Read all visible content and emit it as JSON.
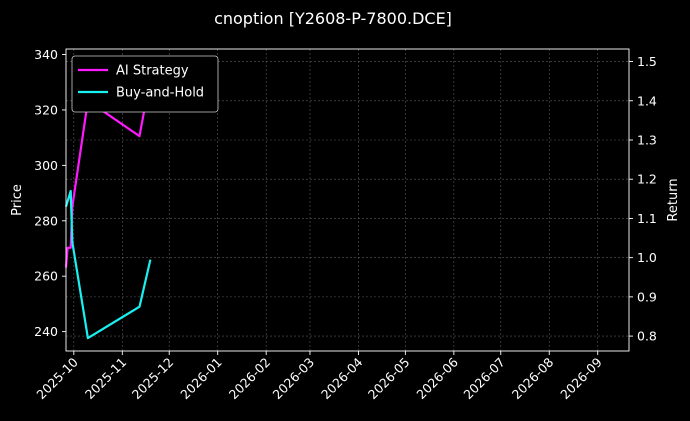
{
  "chart_data": {
    "type": "line",
    "title": "cnoption [Y2608-P-7800.DCE]",
    "xlabel": "",
    "ylabel": "Price",
    "y2label": "Return",
    "x_range": [
      "2025-09-26",
      "2026-09-21"
    ],
    "x_ticks": [
      "2025-10",
      "2025-11",
      "2025-12",
      "2026-01",
      "2026-02",
      "2026-03",
      "2026-04",
      "2026-05",
      "2026-06",
      "2026-07",
      "2026-08",
      "2026-09"
    ],
    "ylim": [
      233,
      342
    ],
    "yticks": [
      240,
      260,
      280,
      300,
      320,
      340
    ],
    "y2lim": [
      0.762,
      1.532
    ],
    "y2ticks": [
      0.8,
      0.9,
      1.0,
      1.1,
      1.2,
      1.3,
      1.4,
      1.5
    ],
    "grid": true,
    "legend_position": "top-left",
    "series": [
      {
        "name": "AI Strategy",
        "color": "#ff19ff",
        "axis": "right",
        "x": [
          "2025-09-26",
          "2025-09-27",
          "2025-09-28",
          "2025-09-29",
          "2025-09-30",
          "2025-10-10",
          "2025-11-12",
          "2025-11-19",
          "2025-11-21"
        ],
        "y": [
          0.975,
          1.025,
          1.025,
          1.025,
          1.13,
          1.4,
          1.31,
          1.46,
          1.48
        ]
      },
      {
        "name": "Buy-and-Hold",
        "color": "#19f0f0",
        "axis": "right",
        "x": [
          "2025-09-26",
          "2025-09-29",
          "2025-09-30",
          "2025-10-10",
          "2025-11-12",
          "2025-11-19"
        ],
        "y": [
          1.13,
          1.17,
          1.04,
          0.795,
          0.875,
          0.995
        ]
      }
    ]
  }
}
